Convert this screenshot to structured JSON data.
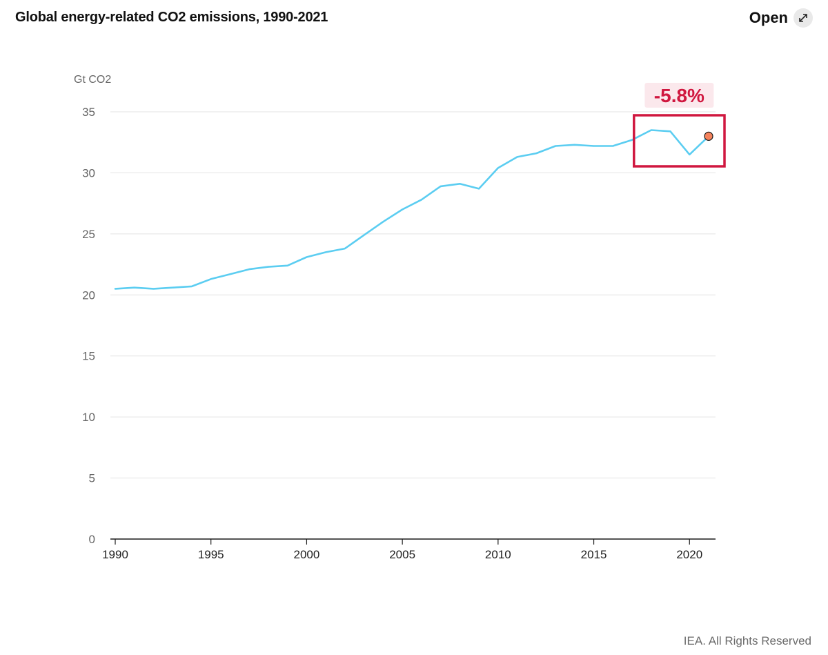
{
  "header": {
    "title": "Global energy-related CO2 emissions, 1990-2021",
    "open_label": "Open",
    "open_icon": "expand-arrows-icon"
  },
  "footer": {
    "credit": "IEA. All Rights Reserved"
  },
  "colors": {
    "line": "#5bcdf1",
    "highlight_box": "#d0173f",
    "annotation_text": "#d0173f",
    "annotation_bg": "#fbe8ec",
    "marker_fill": "#f4825c",
    "grid": "#e3e3e3",
    "axis": "#1a1a1a"
  },
  "chart_data": {
    "type": "line",
    "title": "Global energy-related CO2 emissions, 1990-2021",
    "ylabel": "Gt CO2",
    "xlabel": "",
    "ylim": [
      0,
      35
    ],
    "yticks": [
      0,
      5,
      10,
      15,
      20,
      25,
      30,
      35
    ],
    "xlim": [
      1990,
      2021
    ],
    "xticks": [
      1990,
      1995,
      2000,
      2005,
      2010,
      2015,
      2020
    ],
    "grid": true,
    "series": [
      {
        "x": [
          1990,
          1991,
          1992,
          1993,
          1994,
          1995,
          1996,
          1997,
          1998,
          1999,
          2000,
          2001,
          2002,
          2003,
          2004,
          2005,
          2006,
          2007,
          2008,
          2009,
          2010,
          2011,
          2012,
          2013,
          2014,
          2015,
          2016,
          2017,
          2018,
          2019,
          2020,
          2021
        ],
        "values": [
          20.5,
          20.6,
          20.5,
          20.6,
          20.7,
          21.3,
          21.7,
          22.1,
          22.3,
          22.4,
          23.1,
          23.5,
          23.8,
          24.9,
          26.0,
          27.0,
          27.8,
          28.9,
          29.1,
          28.7,
          30.4,
          31.3,
          31.6,
          32.2,
          32.3,
          32.2,
          32.2,
          32.7,
          33.5,
          33.4,
          31.5,
          33.0
        ]
      }
    ],
    "highlight": {
      "x_range": [
        2018,
        2021
      ],
      "label": "-5.8%"
    },
    "marker": {
      "x": 2021,
      "y": 33.0
    }
  }
}
